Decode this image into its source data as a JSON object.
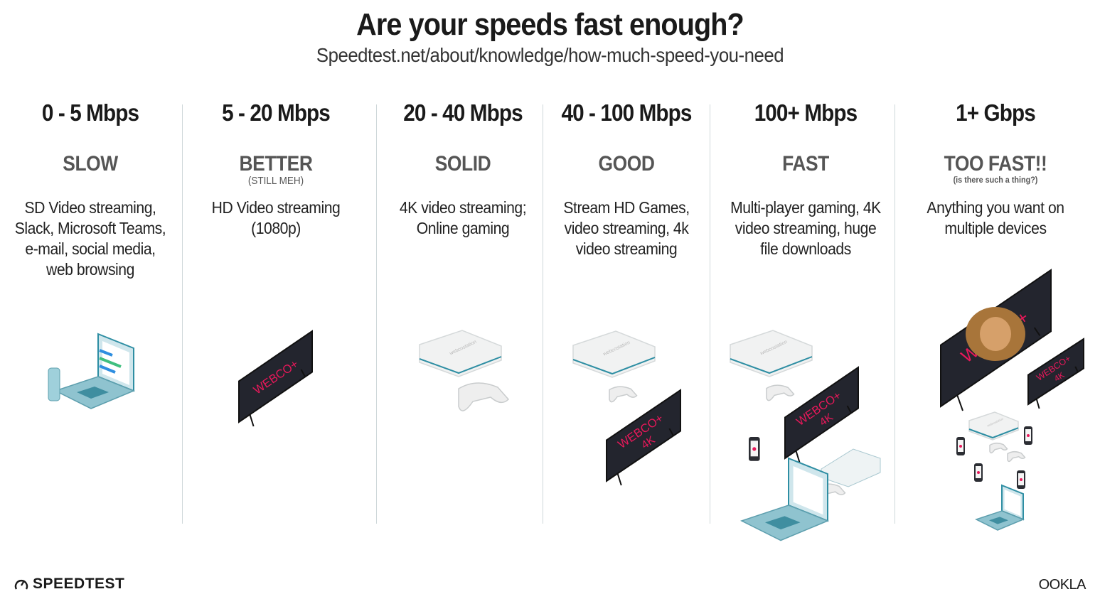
{
  "header": {
    "title": "Are your speeds fast enough?",
    "subtitle": "Speedtest.net/about/knowledge/how-much-speed-you-need"
  },
  "columns": [
    {
      "range": "0 - 5 Mbps",
      "label": "SLOW",
      "note": "",
      "description": "SD Video streaming, Slack, Microsoft Teams, e-mail, social media, web browsing"
    },
    {
      "range": "5 - 20 Mbps",
      "label": "BETTER",
      "note": "(STILL MEH)",
      "description": "HD Video streaming (1080p)"
    },
    {
      "range": "20 - 40 Mbps",
      "label": "SOLID",
      "note": "",
      "description": "4K video streaming; Online gaming"
    },
    {
      "range": "40 - 100 Mbps",
      "label": "GOOD",
      "note": "",
      "description": "Stream HD Games, video streaming, 4k video streaming"
    },
    {
      "range": "100+ Mbps",
      "label": "FAST",
      "note": "",
      "description": "Multi-player gaming, 4K video streaming, huge file downloads"
    },
    {
      "range": "1+ Gbps",
      "label": "TOO FAST!!",
      "note": "(is there such a thing?)",
      "description": "Anything you want on multiple devices"
    }
  ],
  "illustration_text": {
    "tv_brand": "WEBCO+",
    "tv_4k": "4K",
    "console_brand": "webcostation"
  },
  "footer": {
    "left_logo": "SPEEDTEST",
    "right_logo": "OOKLA"
  },
  "colors": {
    "text": "#1a1a1a",
    "label": "#555555",
    "divider": "#cfd8da",
    "tv": "#23252e",
    "tv_text": "#e8185a",
    "laptop": "#8fc3cf",
    "accent_teal": "#2e8ea3"
  }
}
